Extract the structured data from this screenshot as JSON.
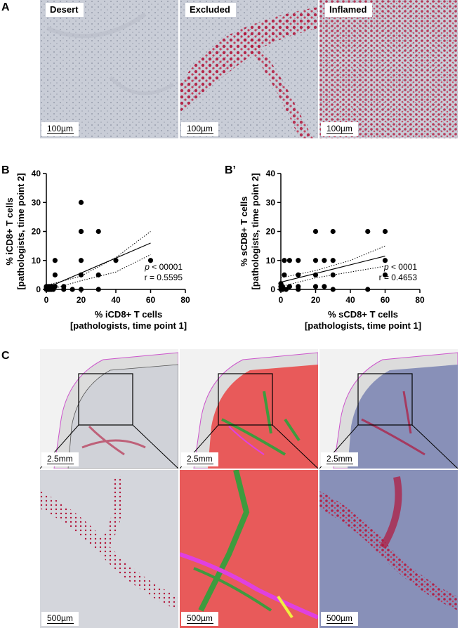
{
  "panel_a": {
    "letter": "A",
    "tiles": [
      {
        "label": "Desert",
        "scale": "100µm"
      },
      {
        "label": "Excluded",
        "scale": "100µm"
      },
      {
        "label": "Inflamed",
        "scale": "100µm"
      }
    ]
  },
  "panel_c": {
    "letter": "C",
    "overview_scale": "2.5mm",
    "zoom_scale": "500µm"
  },
  "chart_data": [
    {
      "type": "scatter",
      "panel": "B",
      "xlabel_line1": "% iCD8+ T cells",
      "xlabel_line2": "[pathologists, time point 1]",
      "ylabel_line1": "% iCD8+ T cells",
      "ylabel_line2": "[pathologists, time point 2]",
      "xlim": [
        0,
        80
      ],
      "ylim": [
        0,
        40
      ],
      "xticks": [
        "0",
        "20",
        "40",
        "60",
        "80"
      ],
      "yticks": [
        "0",
        "10",
        "20",
        "30",
        "40"
      ],
      "p_label": "p",
      "p_value": "< 00001",
      "r_label": "r = 0.5595",
      "x": [
        0,
        0,
        0,
        0.5,
        1,
        1,
        1,
        1.5,
        2,
        2,
        2,
        2.5,
        3,
        3,
        3,
        4,
        4,
        5,
        5,
        5,
        10,
        10,
        15,
        20,
        20,
        20,
        20,
        20,
        20,
        30,
        30,
        30,
        40,
        60
      ],
      "y": [
        0,
        0.5,
        1,
        0,
        0,
        1,
        0.5,
        0,
        0,
        1,
        0.5,
        0,
        0,
        0.5,
        1,
        0,
        1,
        1,
        5,
        10,
        0,
        1,
        0,
        0,
        5,
        10,
        20,
        20,
        30,
        0,
        5,
        20,
        10,
        10
      ],
      "fit": {
        "x": [
          0,
          60
        ],
        "y": [
          0.5,
          16
        ]
      },
      "ci_upper": {
        "x": [
          0,
          20,
          40,
          60
        ],
        "y": [
          1.4,
          4.6,
          11.0,
          20.0
        ]
      },
      "ci_lower": {
        "x": [
          0,
          20,
          40,
          60
        ],
        "y": [
          -0.4,
          3.0,
          6.0,
          12.0
        ]
      }
    },
    {
      "type": "scatter",
      "panel": "B’",
      "xlabel_line1": "% sCD8+ T cells",
      "xlabel_line2": "[pathologists, time point 1]",
      "ylabel_line1": "% sCD8+ T cells",
      "ylabel_line2": "[pathologists, time point 2]",
      "xlim": [
        0,
        80
      ],
      "ylim": [
        0,
        40
      ],
      "xticks": [
        "0",
        "20",
        "40",
        "60",
        "80"
      ],
      "yticks": [
        "0",
        "10",
        "20",
        "30",
        "40"
      ],
      "p_label": "p",
      "p_value": "< 0001",
      "r_label": "r = 0.4653",
      "x": [
        0,
        0,
        0,
        1,
        1,
        2,
        2,
        3,
        5,
        5,
        10,
        10,
        10,
        10,
        20,
        20,
        20,
        20,
        25,
        25,
        30,
        30,
        30,
        30,
        50,
        50,
        60,
        60,
        60
      ],
      "y": [
        0,
        1,
        2,
        0,
        1,
        5,
        10,
        0,
        1,
        10,
        0,
        1,
        5,
        10,
        1,
        5,
        10,
        20,
        1,
        10,
        0,
        5,
        10,
        20,
        0,
        20,
        5,
        10,
        20
      ],
      "fit": {
        "x": [
          0,
          60
        ],
        "y": [
          2.5,
          11.5
        ]
      },
      "ci_upper": {
        "x": [
          0,
          20,
          40,
          60
        ],
        "y": [
          4.0,
          6.5,
          10.0,
          15.0
        ]
      },
      "ci_lower": {
        "x": [
          0,
          20,
          40,
          60
        ],
        "y": [
          1.0,
          4.0,
          6.0,
          8.0
        ]
      }
    }
  ],
  "colors": {
    "tissue_gray": "#c8ccd6",
    "stain_red": "#b2163b",
    "tumor_red": "#e85a5a",
    "stroma_green": "#3e9b3e",
    "magenta": "#e040e0",
    "blue_tissue": "#8890b8"
  }
}
